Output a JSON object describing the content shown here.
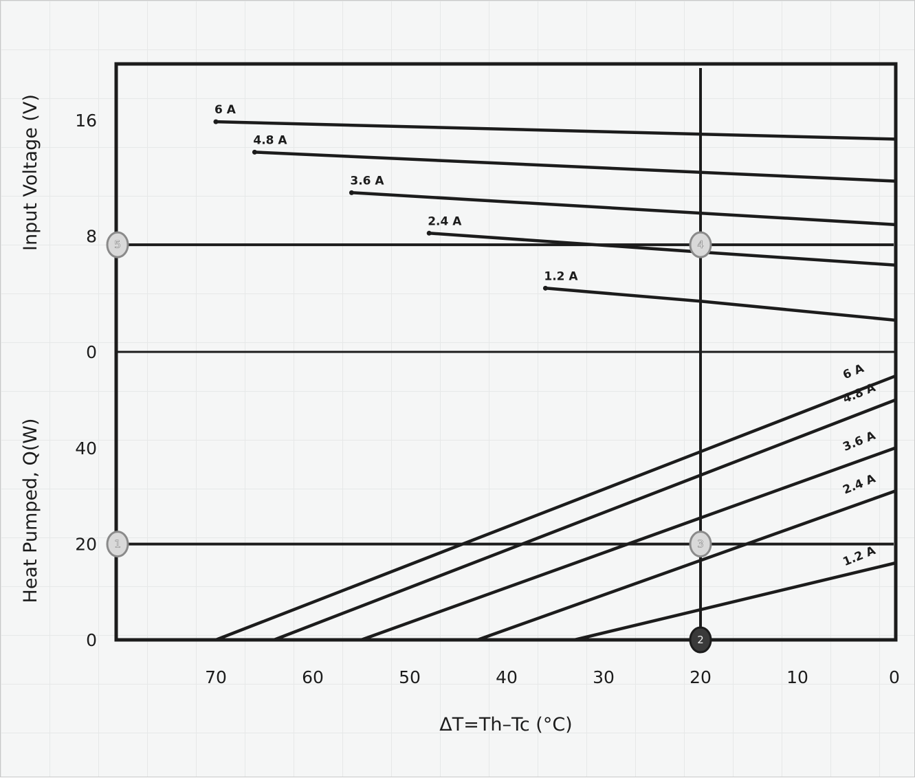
{
  "chart_data": [
    {
      "type": "line",
      "panel": "top",
      "ylabel": "Input Voltage (V)",
      "xlabel": "",
      "yticks": [
        "16",
        "8",
        "0"
      ],
      "ylim": [
        0,
        20
      ],
      "xlim": [
        0,
        80
      ],
      "x_reversed": true,
      "series": [
        {
          "name": "6 A",
          "x": [
            70,
            0
          ],
          "y": [
            15.9,
            14.7
          ]
        },
        {
          "name": "4.8 A",
          "x": [
            66,
            0
          ],
          "y": [
            13.8,
            11.8
          ]
        },
        {
          "name": "3.6 A",
          "x": [
            56,
            0
          ],
          "y": [
            11.0,
            8.8
          ]
        },
        {
          "name": "2.4 A",
          "x": [
            48,
            20,
            0
          ],
          "y": [
            8.2,
            6.9,
            6.0
          ]
        },
        {
          "name": "1.2 A",
          "x": [
            36,
            20,
            0
          ],
          "y": [
            4.4,
            3.5,
            2.2
          ]
        }
      ],
      "reference_lines": [
        {
          "axis": "y",
          "value": 7.4
        },
        {
          "axis": "x",
          "value": 20
        }
      ],
      "markers": [
        {
          "label": "5",
          "x": 80,
          "y": 7.4
        },
        {
          "label": "4",
          "x": 20,
          "y": 7.4
        }
      ]
    },
    {
      "type": "line",
      "panel": "bottom",
      "ylabel": "Heat Pumped, Q(W)",
      "xlabel": "ΔT=Th–Tc (°C)",
      "xticks": [
        "70",
        "60",
        "50",
        "40",
        "30",
        "20",
        "10",
        "0"
      ],
      "yticks": [
        "40",
        "20",
        "0"
      ],
      "ylim": [
        0,
        60
      ],
      "xlim": [
        0,
        80
      ],
      "x_reversed": true,
      "series": [
        {
          "name": "6 A",
          "x": [
            70,
            0
          ],
          "y": [
            0,
            55
          ]
        },
        {
          "name": "4.8 A",
          "x": [
            64,
            0
          ],
          "y": [
            0,
            50
          ]
        },
        {
          "name": "3.6 A",
          "x": [
            55,
            0
          ],
          "y": [
            0,
            40
          ]
        },
        {
          "name": "2.4 A",
          "x": [
            43,
            0
          ],
          "y": [
            0,
            31
          ]
        },
        {
          "name": "1.2 A",
          "x": [
            33,
            0
          ],
          "y": [
            0,
            16
          ]
        }
      ],
      "reference_lines": [
        {
          "axis": "y",
          "value": 20
        },
        {
          "axis": "x",
          "value": 20
        }
      ],
      "markers": [
        {
          "label": "1",
          "x": 80,
          "y": 20
        },
        {
          "label": "3",
          "x": 20,
          "y": 20
        },
        {
          "label": "2",
          "x": 20,
          "y": 0
        }
      ]
    }
  ],
  "colors": {
    "ink": "#1c1c1c",
    "grid": "#e6e8e8",
    "background": "#f5f6f6",
    "marker_light": "#d9d9d9",
    "marker_dark": "#3a3a3a"
  }
}
